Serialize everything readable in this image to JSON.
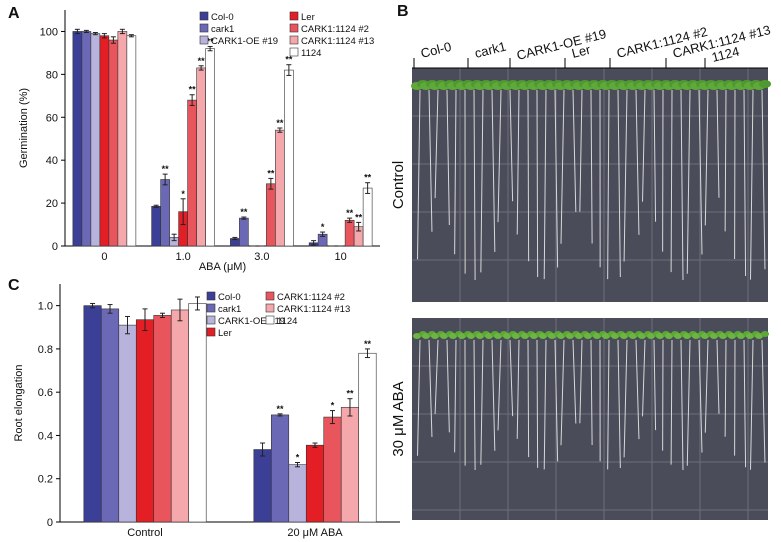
{
  "chart_data": [
    {
      "type": "bar",
      "panel": "A",
      "ylabel": "Germination (%)",
      "xlabel": "ABA (μM)",
      "categories": [
        "0",
        "1.0",
        "3.0",
        "10"
      ],
      "ylim": [
        0,
        110
      ],
      "yticks": [
        0,
        20,
        40,
        60,
        80,
        100
      ],
      "series": [
        {
          "name": "Col-0",
          "color": "#3b3f96",
          "values": [
            100,
            18.5,
            3.5,
            1.5
          ],
          "errors": [
            1,
            0.5,
            0.5,
            1
          ],
          "significance": [
            null,
            null,
            null,
            null
          ]
        },
        {
          "name": "cark1",
          "color": "#6b68b5",
          "values": [
            100,
            31,
            13,
            5.5
          ],
          "errors": [
            0.5,
            2.5,
            0.5,
            1
          ],
          "significance": [
            null,
            "**",
            "**",
            "*"
          ]
        },
        {
          "name": "CARK1-OE #19",
          "color": "#b8b3dc",
          "values": [
            99,
            4,
            0,
            0
          ],
          "errors": [
            0.5,
            1.5,
            0,
            0
          ],
          "significance": [
            null,
            null,
            null,
            null
          ]
        },
        {
          "name": "Ler",
          "color": "#e31e24",
          "values": [
            98,
            16,
            0,
            0
          ],
          "errors": [
            1,
            6,
            0,
            0
          ],
          "significance": [
            null,
            "*",
            null,
            null
          ]
        },
        {
          "name": "CARK1:1124 #2",
          "color": "#e8555c",
          "values": [
            96,
            68,
            29,
            12
          ],
          "errors": [
            1.5,
            2.5,
            2.5,
            1
          ],
          "significance": [
            null,
            "**",
            "**",
            "**"
          ]
        },
        {
          "name": "CARK1:1124 #13",
          "color": "#f4a8ac",
          "values": [
            100,
            83,
            54,
            9
          ],
          "errors": [
            1,
            1,
            1,
            2
          ],
          "significance": [
            null,
            "**",
            "**",
            "**"
          ]
        },
        {
          "name": "1124",
          "color": "#ffffff",
          "values": [
            98,
            92,
            82,
            27
          ],
          "errors": [
            0.5,
            1,
            2.5,
            2.5
          ],
          "significance": [
            null,
            "**",
            "**",
            "**"
          ]
        }
      ]
    },
    {
      "type": "bar",
      "panel": "C",
      "ylabel": "Root elongation",
      "categories": [
        "Control",
        "20 μM ABA"
      ],
      "ylim": [
        0,
        1.1
      ],
      "yticks": [
        0,
        0.2,
        0.4,
        0.6,
        0.8,
        {
          "value": 1,
          "label": "1.0"
        }
      ],
      "series": [
        {
          "name": "Col-0",
          "color": "#3b3f96",
          "values": [
            1.0,
            0.335
          ],
          "errors": [
            0.01,
            0.03
          ],
          "significance": [
            null,
            null
          ]
        },
        {
          "name": "cark1",
          "color": "#6b68b5",
          "values": [
            0.985,
            0.495
          ],
          "errors": [
            0.02,
            0.005
          ],
          "significance": [
            null,
            "**"
          ]
        },
        {
          "name": "CARK1-OE #19",
          "color": "#b8b3dc",
          "values": [
            0.91,
            0.265
          ],
          "errors": [
            0.04,
            0.01
          ],
          "significance": [
            null,
            "*"
          ]
        },
        {
          "name": "Ler",
          "color": "#e31e24",
          "values": [
            0.935,
            0.355
          ],
          "errors": [
            0.05,
            0.01
          ],
          "significance": [
            null,
            null
          ]
        },
        {
          "name": "CARK1:1124 #2",
          "color": "#e8555c",
          "values": [
            0.955,
            0.485
          ],
          "errors": [
            0.01,
            0.03
          ],
          "significance": [
            null,
            "*"
          ]
        },
        {
          "name": "CARK1:1124 #13",
          "color": "#f4a8ac",
          "values": [
            0.98,
            0.53
          ],
          "errors": [
            0.05,
            0.04
          ],
          "significance": [
            null,
            "**"
          ]
        },
        {
          "name": "1124",
          "color": "#ffffff",
          "values": [
            1.01,
            0.78
          ],
          "errors": [
            0.03,
            0.02
          ],
          "significance": [
            null,
            "**"
          ]
        }
      ]
    }
  ],
  "photo": {
    "panel": "B",
    "columns": [
      "Col-0",
      "cark1",
      "CARK1-OE #19",
      "Ler",
      "CARK1:1124 #2",
      "CARK1:1124 #13",
      "1124"
    ],
    "rows": [
      "Control",
      "30 μM ABA"
    ]
  }
}
